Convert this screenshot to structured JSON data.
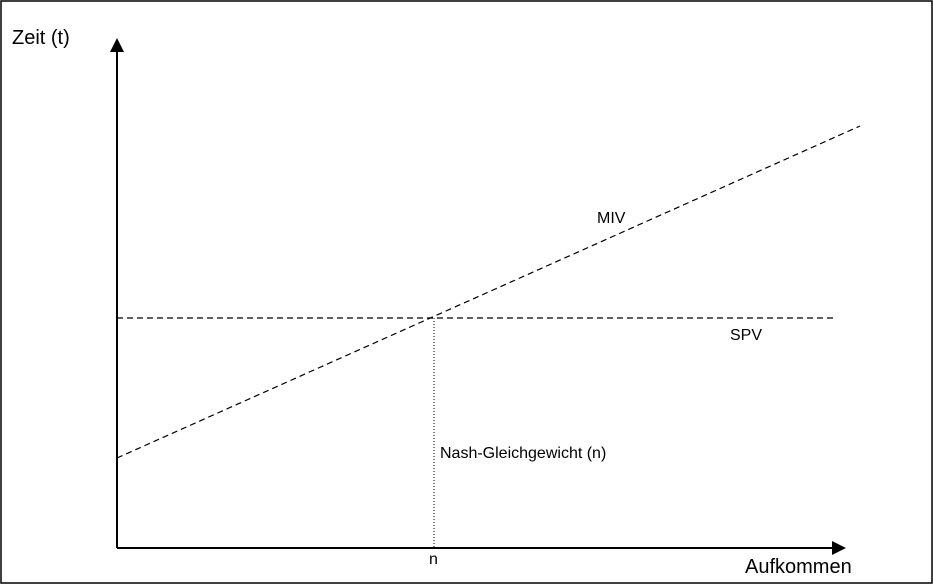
{
  "diagram": {
    "y_axis_label": "Zeit (t)",
    "x_axis_label": "Aufkommen",
    "x_tick_label": "n",
    "curves": {
      "miv_label": "MIV",
      "spv_label": "SPV"
    },
    "equilibrium_label": "Nash-Gleichgewicht (n)"
  },
  "colors": {
    "line": "#000000",
    "background": "#ffffff"
  }
}
